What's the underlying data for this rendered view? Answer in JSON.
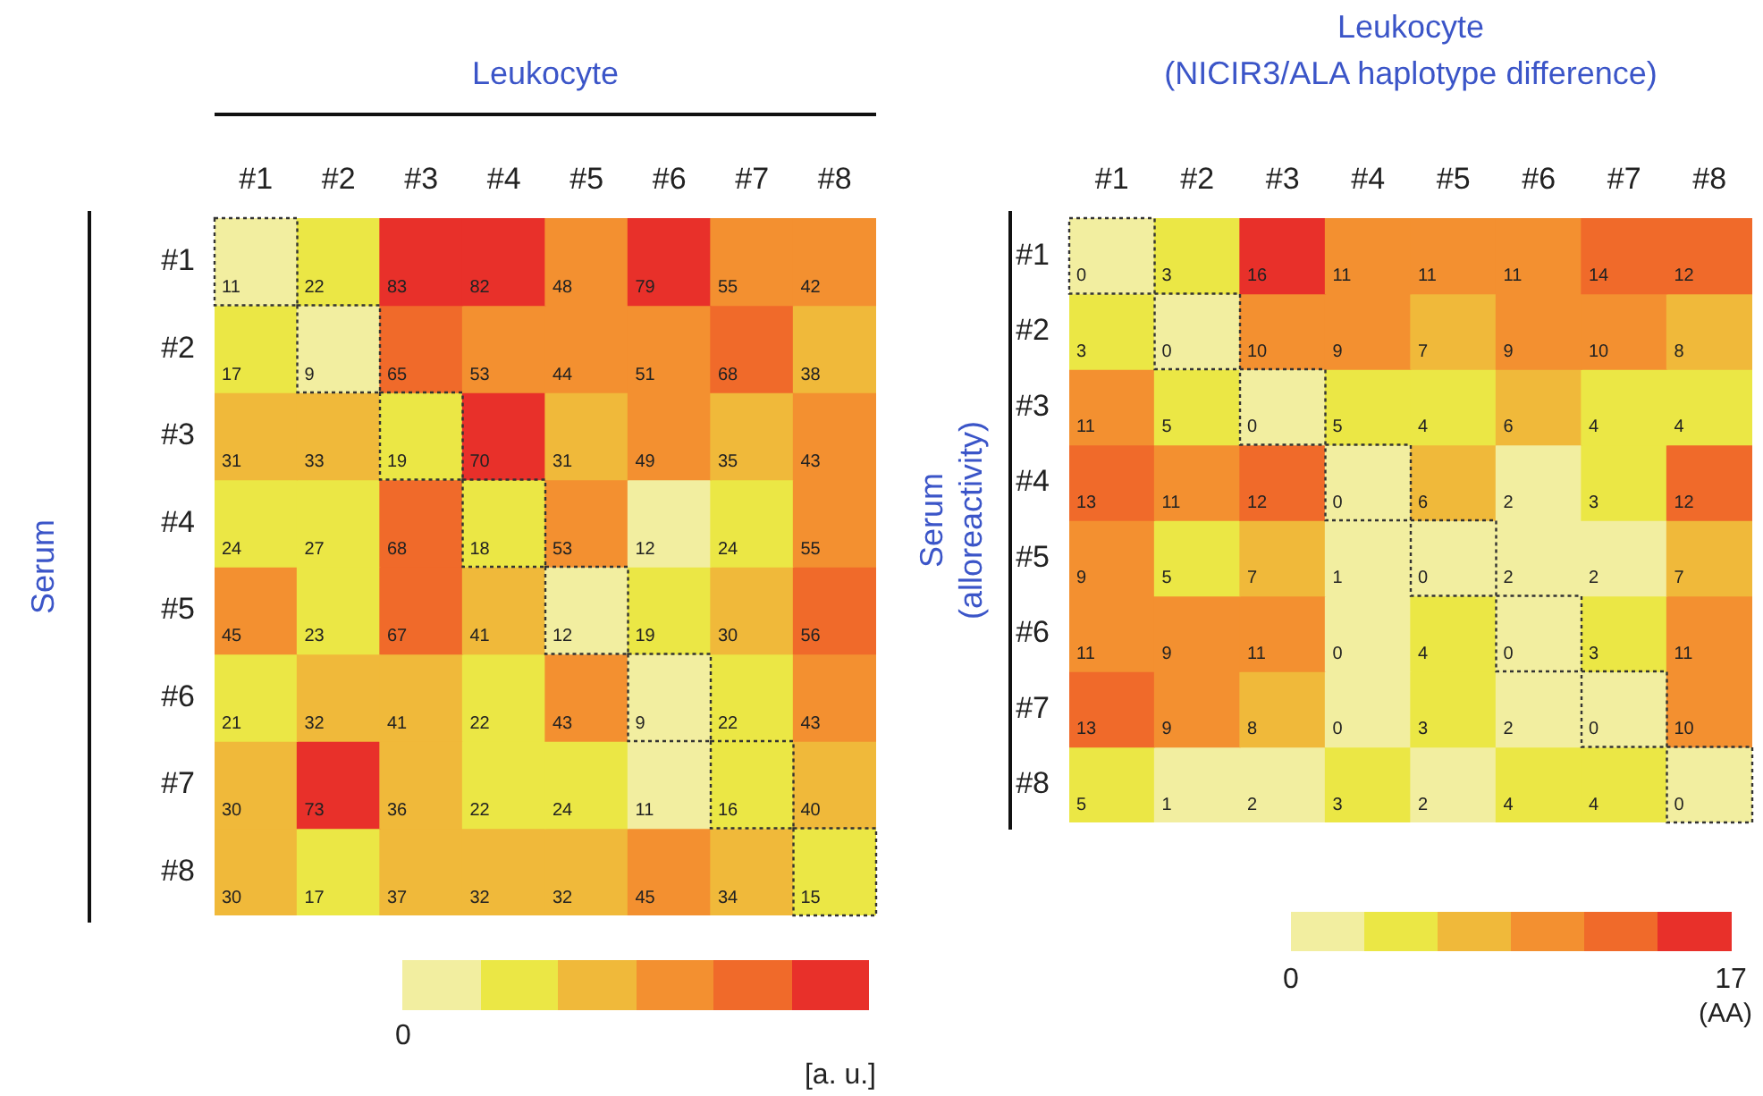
{
  "chart_data": [
    {
      "type": "heatmap",
      "title": "Leukocyte",
      "ylabel": "Serum",
      "annotations": [
        "0",
        "[a. u.]"
      ],
      "data_labels": true,
      "categories": [
        "#1",
        "#2",
        "#3",
        "#4",
        "#5",
        "#6",
        "#7",
        "#8"
      ],
      "y_categories": [
        "#1",
        "#2",
        "#3",
        "#4",
        "#5",
        "#6",
        "#7",
        "#8"
      ],
      "cells": [
        [
          11,
          22,
          83,
          82,
          48,
          79,
          55,
          42
        ],
        [
          17,
          9,
          65,
          53,
          44,
          51,
          68,
          38
        ],
        [
          31,
          33,
          19,
          70,
          31,
          49,
          35,
          43
        ],
        [
          24,
          27,
          68,
          18,
          53,
          12,
          24,
          55
        ],
        [
          45,
          23,
          67,
          41,
          12,
          19,
          30,
          56
        ],
        [
          21,
          32,
          41,
          22,
          43,
          9,
          22,
          43
        ],
        [
          30,
          73,
          36,
          22,
          24,
          11,
          16,
          40
        ],
        [
          30,
          17,
          37,
          32,
          32,
          45,
          34,
          15
        ]
      ]
    },
    {
      "type": "heatmap",
      "title": "Leukocyte\n(NICIR3/ALA haplotype difference)",
      "ylabel": "Serum\n(alloreactivity)",
      "clabel": "(AA)",
      "clim": [
        0,
        17
      ],
      "cticks": [
        0,
        17
      ],
      "data_labels": true,
      "categories": [
        "#1",
        "#2",
        "#3",
        "#4",
        "#5",
        "#6",
        "#7",
        "#8"
      ],
      "y_categories": [
        "#1",
        "#2",
        "#3",
        "#4",
        "#5",
        "#6",
        "#7",
        "#8"
      ],
      "cells": [
        [
          0,
          3,
          16,
          11,
          11,
          11,
          14,
          12
        ],
        [
          3,
          0,
          10,
          9,
          7,
          9,
          10,
          8
        ],
        [
          11,
          5,
          0,
          5,
          4,
          6,
          4,
          4
        ],
        [
          13,
          11,
          12,
          0,
          6,
          2,
          3,
          12
        ],
        [
          9,
          5,
          7,
          1,
          0,
          2,
          2,
          7
        ],
        [
          11,
          9,
          11,
          0,
          4,
          0,
          3,
          11
        ],
        [
          13,
          9,
          8,
          0,
          3,
          2,
          0,
          10
        ],
        [
          5,
          1,
          2,
          3,
          2,
          4,
          4,
          0
        ]
      ]
    }
  ]
}
